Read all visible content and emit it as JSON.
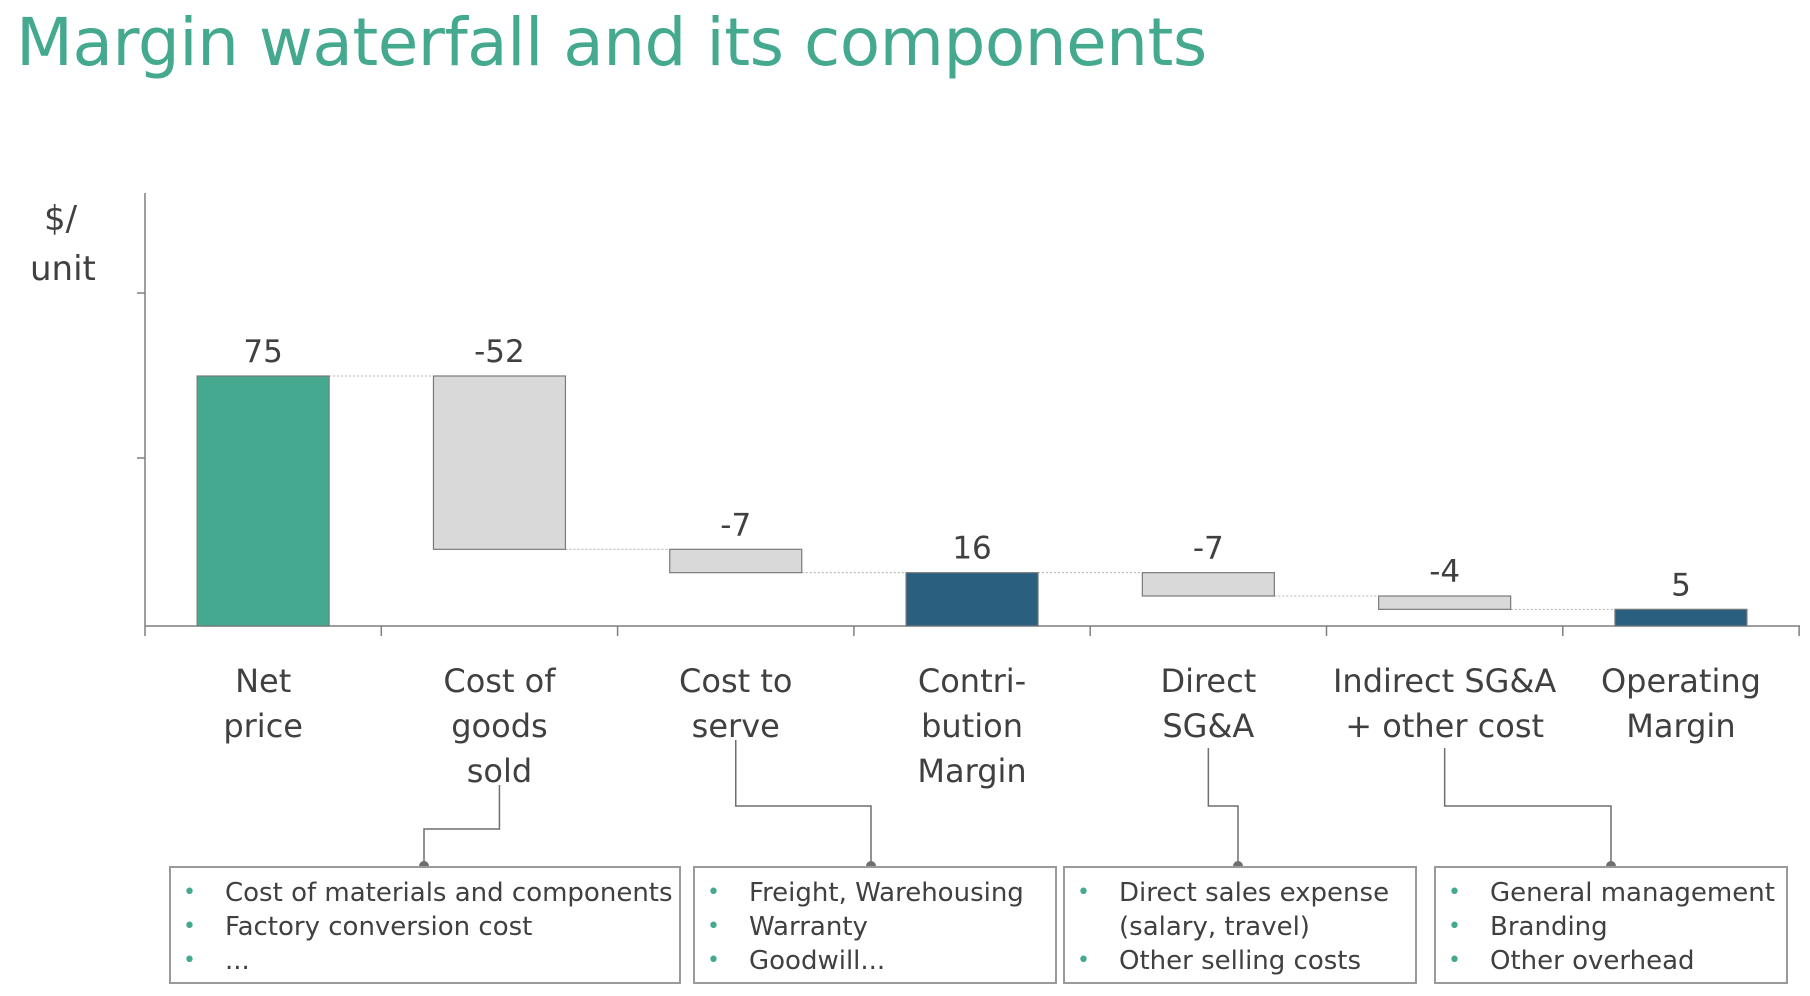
{
  "title": "Margin waterfall and its components",
  "colors": {
    "title": "#45a98f",
    "start_bar": "#45a98f",
    "subtotal_bar": "#2b5f80",
    "decrease_bar": "#d9d9d9",
    "bullet": "#45a98f"
  },
  "chart_data": {
    "type": "waterfall",
    "ylabel": "$/ unit",
    "ylabel_lines": [
      "$/",
      "unit"
    ],
    "categories": [
      [
        "Net",
        "price"
      ],
      [
        "Cost of",
        "goods",
        "sold"
      ],
      [
        "Cost to",
        "serve"
      ],
      [
        "Contri-",
        "bution",
        "Margin"
      ],
      [
        "Direct",
        "SG&A"
      ],
      [
        "Indirect SG&A",
        "+ other cost"
      ],
      [
        "Operating",
        "Margin"
      ]
    ],
    "values": [
      75,
      -52,
      -7,
      16,
      -7,
      -4,
      5
    ],
    "labels": [
      "75",
      "-52",
      "-7",
      "16",
      "-7",
      "-4",
      "5"
    ],
    "kinds": [
      "total",
      "delta",
      "delta",
      "total",
      "delta",
      "delta",
      "total"
    ],
    "ylim": [
      0,
      130
    ],
    "connectors": true,
    "grid": false
  },
  "detail_boxes": [
    {
      "items": [
        "Cost of materials and components",
        "Factory conversion cost",
        "..."
      ],
      "attached_to": "Cost of goods sold"
    },
    {
      "items": [
        "Freight, Warehousing",
        "Warranty",
        "Goodwill..."
      ],
      "attached_to": "Cost to serve"
    },
    {
      "items": [
        "Direct sales expense",
        "(salary, travel)",
        "Other selling costs"
      ],
      "continuation": [
        false,
        true,
        false
      ],
      "attached_to": "Direct SG&A"
    },
    {
      "items": [
        "General management",
        "Branding",
        "Other overhead"
      ],
      "attached_to": "Indirect SG&A + other cost"
    }
  ]
}
